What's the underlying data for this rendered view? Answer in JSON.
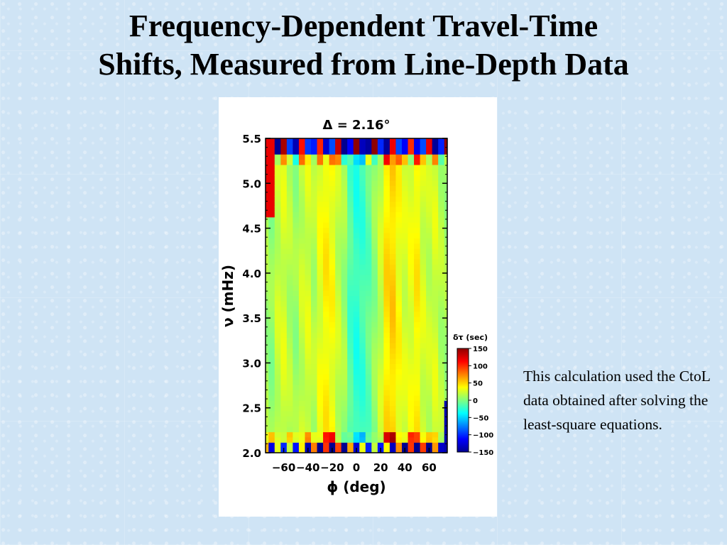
{
  "slide": {
    "title_line1": "Frequency-Dependent Travel-Time",
    "title_line2": "Shifts, Measured from Line-Depth Data",
    "caption": "This calculation used the CtoL data obtained after solving the least-square equations."
  },
  "chart_data": {
    "type": "heatmap",
    "title": "Δ =   2.16°",
    "xlabel": "ϕ (deg)",
    "ylabel": "ν (mHz)",
    "xlim": [
      -75,
      75
    ],
    "ylim": [
      2.0,
      5.5
    ],
    "x_ticks": [
      -60,
      -40,
      -20,
      0,
      20,
      40,
      60
    ],
    "x_tick_labels": [
      "−60",
      "−40",
      "−20",
      "0",
      "20",
      "40",
      "60"
    ],
    "y_ticks": [
      2.0,
      2.5,
      3.0,
      3.5,
      4.0,
      4.5,
      5.0,
      5.5
    ],
    "y_tick_labels": [
      "2.0",
      "2.5",
      "3.0",
      "3.5",
      "4.0",
      "4.5",
      "5.0",
      "5.5"
    ],
    "colorbar": {
      "label": "δτ (sec)",
      "range": [
        -150,
        150
      ],
      "ticks": [
        150,
        100,
        50,
        0,
        -50,
        -100,
        -150
      ],
      "tick_labels": [
        "150",
        "100",
        "50",
        "0",
        "−50",
        "−100",
        "−150"
      ],
      "colors": [
        "#00008f",
        "#0000ff",
        "#0080ff",
        "#00ffff",
        "#80ff80",
        "#ffff00",
        "#ff8000",
        "#ff0000",
        "#8f0000"
      ]
    },
    "column_phi": [
      -75,
      -70,
      -65,
      -60,
      -55,
      -50,
      -45,
      -40,
      -35,
      -30,
      -25,
      -20,
      -15,
      -10,
      -5,
      0,
      5,
      10,
      15,
      20,
      25,
      30,
      35,
      40,
      45,
      50,
      55,
      60,
      65,
      70,
      75
    ],
    "column_dtau": [
      10,
      5,
      20,
      25,
      15,
      8,
      20,
      25,
      15,
      30,
      40,
      35,
      20,
      10,
      -15,
      -25,
      -20,
      -10,
      5,
      20,
      45,
      50,
      35,
      25,
      30,
      40,
      25,
      20,
      25,
      15,
      10
    ]
  }
}
